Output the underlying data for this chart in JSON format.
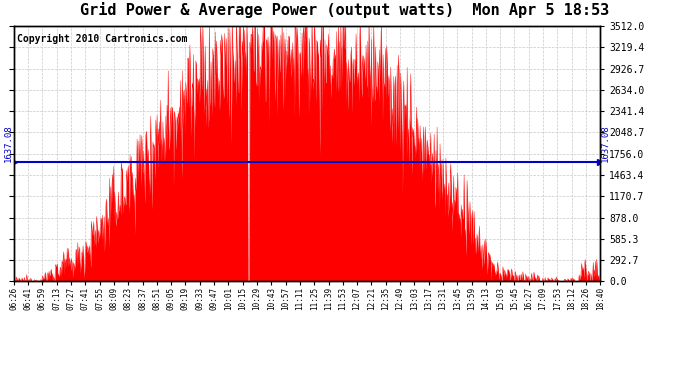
{
  "title": "Grid Power & Average Power (output watts)  Mon Apr 5 18:53",
  "copyright": "Copyright 2010 Cartronics.com",
  "avg_power": 1637.08,
  "y_max": 3512.0,
  "y_min": 0.0,
  "y_ticks": [
    0.0,
    292.7,
    585.3,
    878.0,
    1170.7,
    1463.4,
    1756.0,
    2048.7,
    2341.4,
    2634.0,
    2926.7,
    3219.4,
    3512.0
  ],
  "x_labels": [
    "06:26",
    "06:41",
    "06:59",
    "07:13",
    "07:27",
    "07:41",
    "07:55",
    "08:09",
    "08:23",
    "08:37",
    "08:51",
    "09:05",
    "09:19",
    "09:33",
    "09:47",
    "10:01",
    "10:15",
    "10:29",
    "10:43",
    "10:57",
    "11:11",
    "11:25",
    "11:39",
    "11:53",
    "12:07",
    "12:21",
    "12:35",
    "12:49",
    "13:03",
    "13:17",
    "13:31",
    "13:45",
    "13:59",
    "14:13",
    "15:03",
    "15:45",
    "16:27",
    "17:09",
    "17:53",
    "18:12",
    "18:26",
    "18:40"
  ],
  "fill_color": "#FF0000",
  "line_color": "#FF0000",
  "avg_line_color": "#0000CC",
  "grid_color": "#BBBBBB",
  "background_color": "#FFFFFF",
  "title_fontsize": 11,
  "copyright_fontsize": 7
}
